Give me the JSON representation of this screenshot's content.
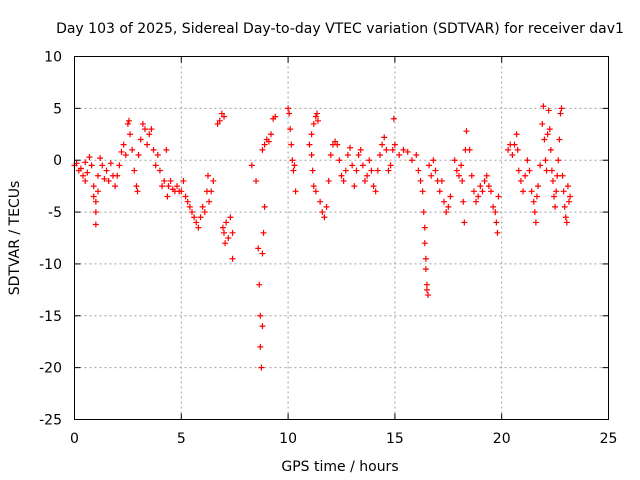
{
  "chart_data": {
    "type": "scatter",
    "title": "Day 103 of 2025, Sidereal Day-to-day VTEC variation (SDTVAR) for receiver dav1",
    "xlabel": "GPS time / hours",
    "ylabel": "SDTVAR / TECUs",
    "xlim": [
      0,
      25
    ],
    "ylim": [
      -25,
      10
    ],
    "xticks": [
      0,
      5,
      10,
      15,
      20,
      25
    ],
    "yticks": [
      -25,
      -20,
      -15,
      -10,
      -5,
      0,
      5,
      10
    ],
    "grid": true,
    "marker": "+",
    "color": "#ff0000",
    "series": [
      {
        "name": "SDTVAR",
        "points": [
          [
            0.0,
            -0.5
          ],
          [
            0.1,
            -0.3
          ],
          [
            0.2,
            -1.0
          ],
          [
            0.3,
            -0.8
          ],
          [
            0.4,
            -1.5
          ],
          [
            0.5,
            -2.0
          ],
          [
            0.5,
            -0.2
          ],
          [
            0.6,
            -1.2
          ],
          [
            0.7,
            0.3
          ],
          [
            0.8,
            -0.5
          ],
          [
            0.9,
            -2.5
          ],
          [
            0.9,
            -3.5
          ],
          [
            1.0,
            -4.0
          ],
          [
            1.0,
            -6.2
          ],
          [
            1.0,
            -5.0
          ],
          [
            1.1,
            -3.0
          ],
          [
            1.1,
            -1.5
          ],
          [
            1.2,
            0.2
          ],
          [
            1.3,
            -0.5
          ],
          [
            1.4,
            -1.8
          ],
          [
            1.5,
            -1.0
          ],
          [
            1.6,
            -2.0
          ],
          [
            1.7,
            -0.3
          ],
          [
            1.8,
            -1.5
          ],
          [
            1.9,
            -2.5
          ],
          [
            2.0,
            -1.5
          ],
          [
            2.1,
            -0.5
          ],
          [
            2.2,
            0.8
          ],
          [
            2.3,
            1.5
          ],
          [
            2.4,
            0.5
          ],
          [
            2.5,
            3.5
          ],
          [
            2.55,
            3.8
          ],
          [
            2.6,
            2.5
          ],
          [
            2.7,
            1.0
          ],
          [
            2.8,
            -1.0
          ],
          [
            2.9,
            -2.5
          ],
          [
            2.95,
            -3.0
          ],
          [
            3.0,
            0.5
          ],
          [
            3.1,
            2.0
          ],
          [
            3.2,
            3.5
          ],
          [
            3.3,
            3.0
          ],
          [
            3.4,
            1.5
          ],
          [
            3.5,
            2.5
          ],
          [
            3.6,
            3.0
          ],
          [
            3.7,
            1.0
          ],
          [
            3.8,
            -0.5
          ],
          [
            3.9,
            0.5
          ],
          [
            4.0,
            -1.0
          ],
          [
            4.1,
            -2.5
          ],
          [
            4.2,
            -2.0
          ],
          [
            4.3,
            1.0
          ],
          [
            4.35,
            -3.5
          ],
          [
            4.4,
            -2.5
          ],
          [
            4.5,
            -2.0
          ],
          [
            4.6,
            -2.8
          ],
          [
            4.7,
            -3.0
          ],
          [
            4.8,
            -2.5
          ],
          [
            4.9,
            -3.0
          ],
          [
            5.0,
            -3.0
          ],
          [
            5.1,
            -2.0
          ],
          [
            5.2,
            -3.5
          ],
          [
            5.3,
            -4.0
          ],
          [
            5.4,
            -4.5
          ],
          [
            5.5,
            -5.0
          ],
          [
            5.6,
            -5.5
          ],
          [
            5.7,
            -6.0
          ],
          [
            5.8,
            -6.5
          ],
          [
            5.9,
            -5.5
          ],
          [
            6.0,
            -4.5
          ],
          [
            6.1,
            -5.0
          ],
          [
            6.2,
            -3.0
          ],
          [
            6.25,
            -1.5
          ],
          [
            6.3,
            -4.0
          ],
          [
            6.4,
            -3.0
          ],
          [
            6.5,
            -2.0
          ],
          [
            6.7,
            3.5
          ],
          [
            6.8,
            3.8
          ],
          [
            6.9,
            4.5
          ],
          [
            7.0,
            4.2
          ],
          [
            6.95,
            -6.5
          ],
          [
            7.0,
            -7.0
          ],
          [
            7.05,
            -8.0
          ],
          [
            7.1,
            -6.0
          ],
          [
            7.2,
            -7.5
          ],
          [
            7.3,
            -5.5
          ],
          [
            7.4,
            -7.0
          ],
          [
            7.4,
            -9.5
          ],
          [
            8.3,
            -0.5
          ],
          [
            8.5,
            -2.0
          ],
          [
            8.6,
            -8.5
          ],
          [
            8.65,
            -12.0
          ],
          [
            8.7,
            -15.0
          ],
          [
            8.7,
            -18.0
          ],
          [
            8.75,
            -20.0
          ],
          [
            8.8,
            -16.0
          ],
          [
            8.8,
            -9.0
          ],
          [
            8.85,
            -7.0
          ],
          [
            8.9,
            -4.5
          ],
          [
            8.8,
            1.0
          ],
          [
            8.9,
            1.5
          ],
          [
            9.0,
            2.0
          ],
          [
            9.1,
            1.8
          ],
          [
            9.2,
            2.5
          ],
          [
            9.3,
            4.0
          ],
          [
            9.4,
            4.2
          ],
          [
            10.0,
            5.0
          ],
          [
            10.05,
            4.5
          ],
          [
            10.1,
            3.0
          ],
          [
            10.15,
            1.5
          ],
          [
            10.2,
            0.0
          ],
          [
            10.25,
            -1.0
          ],
          [
            10.3,
            -0.5
          ],
          [
            10.35,
            -3.0
          ],
          [
            11.0,
            1.5
          ],
          [
            11.1,
            2.5
          ],
          [
            11.2,
            3.5
          ],
          [
            11.3,
            4.2
          ],
          [
            11.35,
            4.5
          ],
          [
            11.4,
            3.8
          ],
          [
            11.1,
            0.5
          ],
          [
            11.15,
            -1.0
          ],
          [
            11.2,
            -2.5
          ],
          [
            11.3,
            -3.0
          ],
          [
            11.5,
            -4.0
          ],
          [
            11.6,
            -5.0
          ],
          [
            11.7,
            -5.5
          ],
          [
            11.8,
            -4.5
          ],
          [
            11.9,
            -2.0
          ],
          [
            12.0,
            0.5
          ],
          [
            12.1,
            1.5
          ],
          [
            12.2,
            1.8
          ],
          [
            12.3,
            1.5
          ],
          [
            12.4,
            0.0
          ],
          [
            12.5,
            -1.5
          ],
          [
            12.6,
            -2.0
          ],
          [
            12.7,
            -1.0
          ],
          [
            12.8,
            0.5
          ],
          [
            12.9,
            1.2
          ],
          [
            13.0,
            -0.5
          ],
          [
            13.1,
            -2.5
          ],
          [
            13.2,
            -1.0
          ],
          [
            13.3,
            0.5
          ],
          [
            13.4,
            1.0
          ],
          [
            13.5,
            -0.5
          ],
          [
            13.6,
            -2.0
          ],
          [
            13.7,
            -1.5
          ],
          [
            13.8,
            0.0
          ],
          [
            13.9,
            -1.0
          ],
          [
            14.0,
            -2.5
          ],
          [
            14.1,
            -3.0
          ],
          [
            14.2,
            -1.0
          ],
          [
            14.3,
            0.5
          ],
          [
            14.4,
            1.5
          ],
          [
            14.5,
            2.2
          ],
          [
            14.6,
            1.0
          ],
          [
            14.7,
            -1.0
          ],
          [
            14.8,
            -0.5
          ],
          [
            14.9,
            1.0
          ],
          [
            14.95,
            4.0
          ],
          [
            15.0,
            1.5
          ],
          [
            15.2,
            0.5
          ],
          [
            15.4,
            1.0
          ],
          [
            15.6,
            0.8
          ],
          [
            15.8,
            0.0
          ],
          [
            16.0,
            0.5
          ],
          [
            16.1,
            -1.0
          ],
          [
            16.2,
            -2.0
          ],
          [
            16.3,
            -3.0
          ],
          [
            16.35,
            -5.0
          ],
          [
            16.4,
            -6.5
          ],
          [
            16.4,
            -8.0
          ],
          [
            16.45,
            -9.5
          ],
          [
            16.45,
            -10.5
          ],
          [
            16.5,
            -12.0
          ],
          [
            16.5,
            -12.5
          ],
          [
            16.55,
            -13.0
          ],
          [
            16.6,
            -0.5
          ],
          [
            16.7,
            -1.5
          ],
          [
            16.8,
            0.0
          ],
          [
            16.9,
            -1.0
          ],
          [
            17.0,
            -2.0
          ],
          [
            17.1,
            -3.0
          ],
          [
            17.2,
            -2.0
          ],
          [
            17.3,
            -4.0
          ],
          [
            17.4,
            -5.0
          ],
          [
            17.5,
            -4.5
          ],
          [
            17.6,
            -3.5
          ],
          [
            17.8,
            0.0
          ],
          [
            17.9,
            -1.0
          ],
          [
            18.0,
            -1.5
          ],
          [
            18.1,
            -0.5
          ],
          [
            18.15,
            -2.0
          ],
          [
            18.2,
            -4.0
          ],
          [
            18.25,
            -6.0
          ],
          [
            18.3,
            1.0
          ],
          [
            18.35,
            2.8
          ],
          [
            18.5,
            1.0
          ],
          [
            18.6,
            -1.5
          ],
          [
            18.7,
            -3.0
          ],
          [
            18.8,
            -4.0
          ],
          [
            18.9,
            -3.5
          ],
          [
            19.0,
            -2.5
          ],
          [
            19.1,
            -3.0
          ],
          [
            19.2,
            -2.0
          ],
          [
            19.3,
            -1.5
          ],
          [
            19.4,
            -2.5
          ],
          [
            19.5,
            -3.0
          ],
          [
            19.6,
            -4.5
          ],
          [
            19.7,
            -5.0
          ],
          [
            19.75,
            -6.0
          ],
          [
            19.8,
            -7.0
          ],
          [
            19.85,
            -3.5
          ],
          [
            20.3,
            1.0
          ],
          [
            20.4,
            1.5
          ],
          [
            20.5,
            0.5
          ],
          [
            20.6,
            1.5
          ],
          [
            20.7,
            2.5
          ],
          [
            20.75,
            1.0
          ],
          [
            20.8,
            -1.0
          ],
          [
            20.9,
            -2.0
          ],
          [
            21.0,
            -3.0
          ],
          [
            21.1,
            -1.5
          ],
          [
            21.2,
            0.0
          ],
          [
            21.3,
            -1.0
          ],
          [
            21.4,
            -3.0
          ],
          [
            21.5,
            -4.0
          ],
          [
            21.55,
            -5.0
          ],
          [
            21.6,
            -6.0
          ],
          [
            21.65,
            -3.5
          ],
          [
            21.7,
            -2.5
          ],
          [
            21.8,
            -0.5
          ],
          [
            21.9,
            3.5
          ],
          [
            21.95,
            5.2
          ],
          [
            22.0,
            2.0
          ],
          [
            22.05,
            0.0
          ],
          [
            22.1,
            -1.0
          ],
          [
            22.15,
            2.5
          ],
          [
            22.2,
            4.8
          ],
          [
            22.25,
            3.0
          ],
          [
            22.3,
            1.0
          ],
          [
            22.35,
            -1.0
          ],
          [
            22.4,
            -2.0
          ],
          [
            22.45,
            -3.5
          ],
          [
            22.5,
            -4.5
          ],
          [
            22.55,
            -3.0
          ],
          [
            22.6,
            -1.5
          ],
          [
            22.65,
            0.0
          ],
          [
            22.7,
            2.0
          ],
          [
            22.75,
            4.5
          ],
          [
            22.8,
            5.0
          ],
          [
            22.85,
            -1.5
          ],
          [
            22.9,
            -3.0
          ],
          [
            22.95,
            -4.5
          ],
          [
            23.0,
            -5.5
          ],
          [
            23.05,
            -6.0
          ],
          [
            23.1,
            -2.5
          ],
          [
            23.15,
            -4.0
          ],
          [
            23.2,
            -3.5
          ]
        ]
      }
    ]
  }
}
